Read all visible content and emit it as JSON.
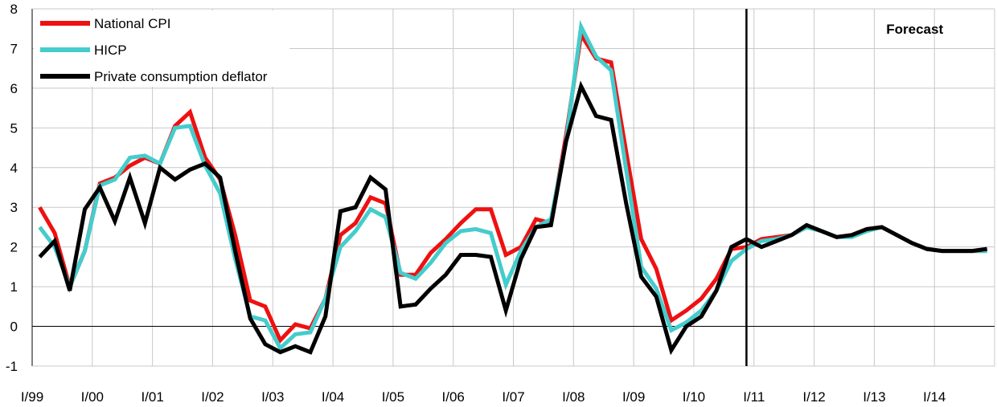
{
  "chart_data": {
    "type": "line",
    "title": "",
    "xlabel": "",
    "ylabel": "",
    "ylim": [
      -1,
      8
    ],
    "yticks": [
      -1,
      0,
      1,
      2,
      3,
      4,
      5,
      6,
      7,
      8
    ],
    "x_start": "1999Q1",
    "x_end": "2014Q4",
    "x_tick_labels": [
      "I/99",
      "I/00",
      "I/01",
      "I/02",
      "I/03",
      "I/04",
      "I/05",
      "I/06",
      "I/07",
      "I/08",
      "I/09",
      "I/10",
      "I/11",
      "I/12",
      "I/13",
      "I/14"
    ],
    "grid": true,
    "legend_position": "top-left",
    "forecast_start": "2010Q4",
    "annotation": "Forecast",
    "series": [
      {
        "name": "National CPI",
        "color": "#ee1111",
        "values": [
          3.0,
          2.35,
          1.0,
          1.9,
          3.6,
          3.75,
          4.05,
          4.25,
          4.1,
          5.05,
          5.4,
          4.25,
          3.7,
          2.3,
          0.65,
          0.5,
          -0.35,
          0.05,
          -0.05,
          0.7,
          2.3,
          2.6,
          3.25,
          3.1,
          1.3,
          1.3,
          1.85,
          2.2,
          2.6,
          2.95,
          2.95,
          1.8,
          2.0,
          2.7,
          2.6,
          4.8,
          7.35,
          6.75,
          6.65,
          4.4,
          2.2,
          1.45,
          0.15,
          0.4,
          0.7,
          1.2,
          1.95,
          2.0,
          2.2,
          2.25,
          2.3,
          2.5,
          2.4,
          2.25,
          2.3,
          2.45,
          2.5,
          2.3,
          2.1,
          1.95,
          1.9,
          1.9,
          1.9,
          1.9
        ]
      },
      {
        "name": "HICP",
        "color": "#45cccc",
        "values": [
          2.5,
          2.0,
          1.0,
          1.9,
          3.55,
          3.7,
          4.25,
          4.3,
          4.1,
          5.0,
          5.05,
          4.05,
          3.35,
          1.7,
          0.25,
          0.15,
          -0.55,
          -0.2,
          -0.15,
          0.7,
          2.0,
          2.4,
          2.95,
          2.75,
          1.35,
          1.2,
          1.6,
          2.1,
          2.4,
          2.45,
          2.35,
          1.05,
          1.9,
          2.5,
          2.7,
          4.65,
          7.55,
          6.8,
          6.45,
          3.95,
          1.5,
          0.95,
          -0.1,
          0.1,
          0.4,
          0.9,
          1.65,
          1.95,
          2.15,
          2.2,
          2.3,
          2.5,
          2.4,
          2.25,
          2.25,
          2.4,
          2.5,
          2.3,
          2.1,
          1.95,
          1.9,
          1.9,
          1.9,
          1.9
        ]
      },
      {
        "name": "Private consumption deflator",
        "color": "#000000",
        "values": [
          1.75,
          2.15,
          0.9,
          2.95,
          3.5,
          2.65,
          3.75,
          2.6,
          4.0,
          3.7,
          3.95,
          4.1,
          3.75,
          1.9,
          0.2,
          -0.45,
          -0.65,
          -0.5,
          -0.65,
          0.25,
          2.9,
          3.0,
          3.75,
          3.45,
          0.5,
          0.55,
          0.95,
          1.3,
          1.8,
          1.8,
          1.75,
          0.4,
          1.7,
          2.5,
          2.55,
          4.65,
          6.05,
          5.3,
          5.2,
          3.1,
          1.25,
          0.75,
          -0.6,
          0.0,
          0.25,
          0.9,
          2.0,
          2.2,
          2.0,
          2.15,
          2.3,
          2.55,
          2.4,
          2.25,
          2.3,
          2.45,
          2.5,
          2.3,
          2.1,
          1.95,
          1.9,
          1.9,
          1.9,
          1.95
        ]
      }
    ]
  }
}
